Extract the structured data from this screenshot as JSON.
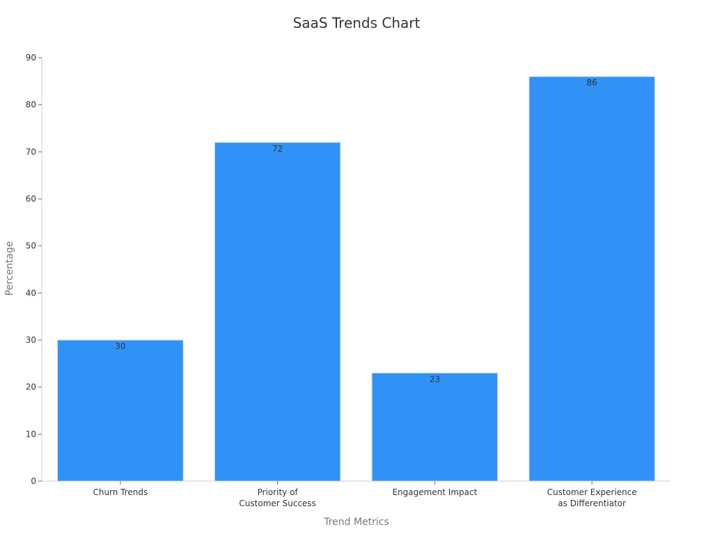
{
  "chart_data": {
    "type": "bar",
    "title": "SaaS Trends Chart",
    "xlabel": "Trend Metrics",
    "ylabel": "Percentage",
    "categories": [
      [
        "Churn Trends"
      ],
      [
        "Priority of",
        "Customer Success"
      ],
      [
        "Engagement Impact"
      ],
      [
        "Customer Experience",
        "as Differentiator"
      ]
    ],
    "values": [
      30,
      72,
      23,
      86
    ],
    "ylim": [
      0,
      90
    ],
    "yticks": [
      0,
      10,
      20,
      30,
      40,
      50,
      60,
      70,
      80,
      90
    ],
    "grid": false,
    "legend": "none",
    "bar_color": "#3092f7",
    "bar_edge_color": "#e0e0e0"
  }
}
